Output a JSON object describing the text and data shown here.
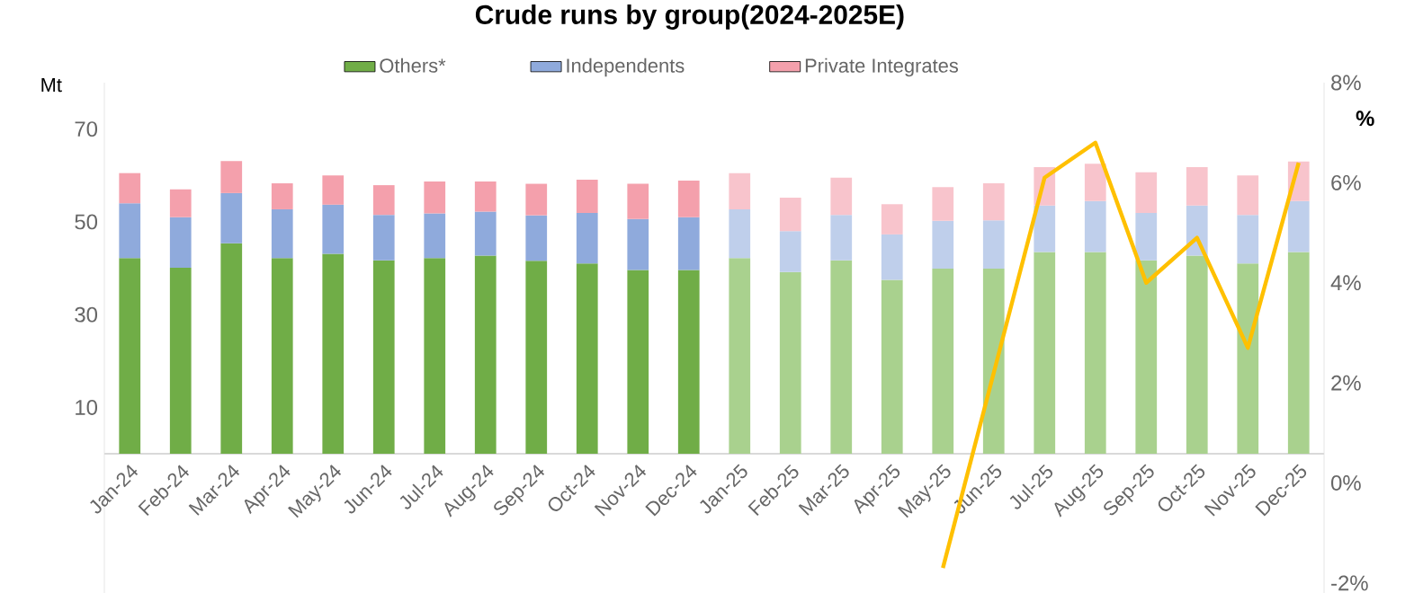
{
  "chart_data": {
    "type": "bar",
    "title": "Crude runs by  group(2024-2025E)",
    "ylabel": "Mt",
    "y2label": "%",
    "categories": [
      "Jan-24",
      "Feb-24",
      "Mar-24",
      "Apr-24",
      "May-24",
      "Jun-24",
      "Jul-24",
      "Aug-24",
      "Sep-24",
      "Oct-24",
      "Nov-24",
      "Dec-24",
      "Jan-25",
      "Feb-25",
      "Mar-25",
      "Apr-25",
      "May-25",
      "Jun-25",
      "Jul-25",
      "Aug-25",
      "Sep-25",
      "Oct-25",
      "Nov-25",
      "Dec-25"
    ],
    "stacked": true,
    "legend": "top",
    "ylim": [
      -30,
      80
    ],
    "yticks": [
      10,
      30,
      50,
      70
    ],
    "y2lim": [
      -2.2,
      8
    ],
    "y2ticks": [
      {
        "value": -2,
        "label": "-2%"
      },
      {
        "value": 0,
        "label": "0%"
      },
      {
        "value": 2,
        "label": "2%"
      },
      {
        "value": 4,
        "label": "4%"
      },
      {
        "value": 6,
        "label": "6%"
      },
      {
        "value": 8,
        "label": "8%"
      }
    ],
    "series": [
      {
        "name": "Others*",
        "color": "#70ad47",
        "colors": [
          "#70ad47",
          "#70ad47",
          "#70ad47",
          "#70ad47",
          "#70ad47",
          "#70ad47",
          "#70ad47",
          "#70ad47",
          "#70ad47",
          "#70ad47",
          "#70ad47",
          "#70ad47",
          "#a9d18e",
          "#a9d18e",
          "#a9d18e",
          "#a9d18e",
          "#a9d18e",
          "#a9d18e",
          "#a9d18e",
          "#a9d18e",
          "#a9d18e",
          "#a9d18e",
          "#a9d18e",
          "#a9d18e"
        ],
        "values": [
          42.2,
          40.1,
          45.4,
          42.2,
          43.1,
          41.7,
          42.2,
          42.7,
          41.6,
          41.0,
          39.6,
          39.6,
          42.2,
          39.2,
          41.7,
          37.5,
          39.9,
          39.9,
          43.5,
          43.5,
          41.7,
          42.7,
          41.0,
          43.5
        ]
      },
      {
        "name": "Independents",
        "color": "#8faadc",
        "colors": [
          "#8faadc",
          "#8faadc",
          "#8faadc",
          "#8faadc",
          "#8faadc",
          "#8faadc",
          "#8faadc",
          "#8faadc",
          "#8faadc",
          "#8faadc",
          "#8faadc",
          "#8faadc",
          "#bfcfeb",
          "#bfcfeb",
          "#bfcfeb",
          "#bfcfeb",
          "#bfcfeb",
          "#bfcfeb",
          "#bfcfeb",
          "#bfcfeb",
          "#bfcfeb",
          "#bfcfeb",
          "#bfcfeb",
          "#bfcfeb"
        ],
        "values": [
          11.8,
          10.9,
          10.8,
          10.5,
          10.6,
          9.8,
          9.6,
          9.5,
          9.8,
          10.9,
          11.0,
          11.4,
          10.5,
          8.8,
          9.8,
          9.8,
          10.3,
          10.4,
          10.0,
          11.0,
          10.2,
          10.8,
          10.5,
          11.0
        ]
      },
      {
        "name": "Private Integrates",
        "color": "#f4a0ac",
        "colors": [
          "#f4a0ac",
          "#f4a0ac",
          "#f4a0ac",
          "#f4a0ac",
          "#f4a0ac",
          "#f4a0ac",
          "#f4a0ac",
          "#f4a0ac",
          "#f4a0ac",
          "#f4a0ac",
          "#f4a0ac",
          "#f4a0ac",
          "#f8c4cc",
          "#f8c4cc",
          "#f8c4cc",
          "#f8c4cc",
          "#f8c4cc",
          "#f8c4cc",
          "#f8c4cc",
          "#f8c4cc",
          "#f8c4cc",
          "#f8c4cc",
          "#f8c4cc",
          "#f8c4cc"
        ],
        "values": [
          6.5,
          6.0,
          6.9,
          5.6,
          6.3,
          6.4,
          6.9,
          6.5,
          6.8,
          7.2,
          7.6,
          7.9,
          7.8,
          7.2,
          8.0,
          6.5,
          7.3,
          8.0,
          8.3,
          8.0,
          8.8,
          8.3,
          8.5,
          8.5
        ]
      },
      {
        "type": "line",
        "axis": "y2",
        "color": "#ffc000",
        "values": [
          null,
          null,
          null,
          null,
          null,
          null,
          null,
          null,
          null,
          null,
          null,
          null,
          null,
          null,
          null,
          null,
          -1.7,
          2.2,
          6.1,
          6.8,
          4.0,
          4.9,
          2.7,
          6.4
        ]
      }
    ]
  }
}
